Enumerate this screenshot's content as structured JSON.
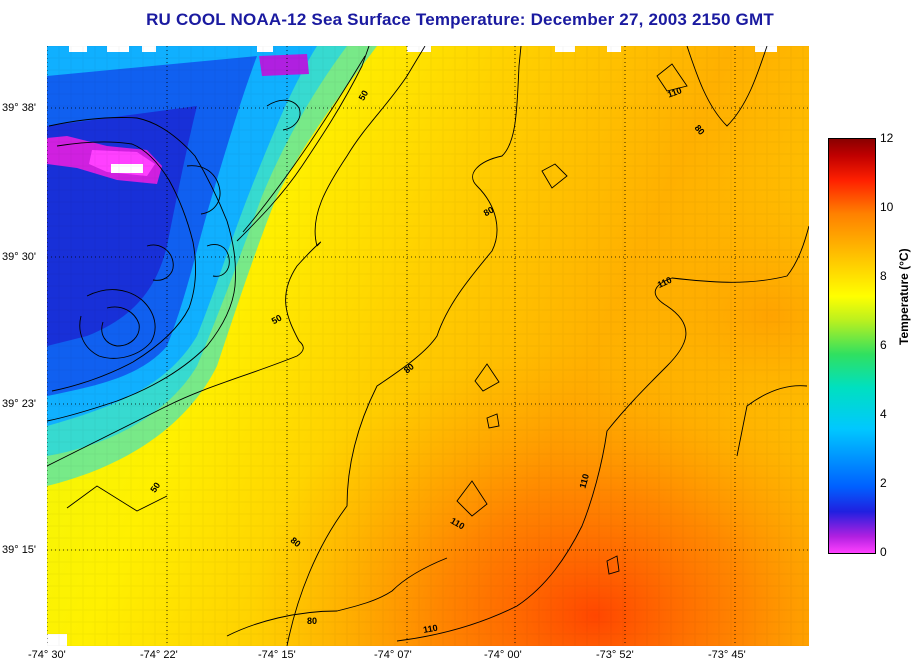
{
  "title": "RU COOL  NOAA-12  Sea Surface Temperature:  December 27, 2003 2150 GMT",
  "latitude_labels": [
    "39° 38'",
    "39° 30'",
    "39° 23'",
    "39° 15'"
  ],
  "longitude_labels": [
    "-74° 30'",
    "-74° 22'",
    "-74° 15'",
    "-74° 07'",
    "-74° 00'",
    "-73° 52'",
    "-73° 45'"
  ],
  "colorbar": {
    "label": "Temperature (°C)",
    "ticks": [
      "0",
      "2",
      "4",
      "6",
      "8",
      "10",
      "12"
    ],
    "min": 0,
    "max": 12
  },
  "contour_labels": [
    "50",
    "50",
    "50",
    "80",
    "80",
    "80",
    "80",
    "80",
    "110",
    "110",
    "110",
    "110",
    "110"
  ],
  "colors": {
    "title": "#1a1aa0",
    "land": "#ffffff"
  }
}
